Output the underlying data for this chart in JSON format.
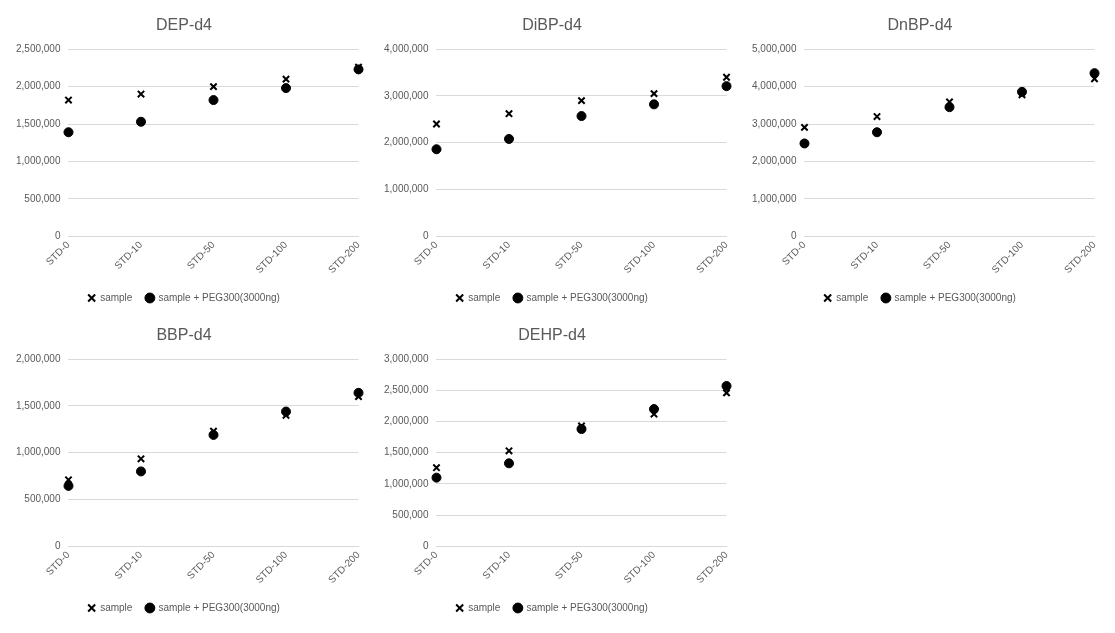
{
  "chart_data": [
    {
      "type": "scatter",
      "title": "DEP-d4",
      "categories": [
        "STD-0",
        "STD-10",
        "STD-50",
        "STD-100",
        "STD-200"
      ],
      "ylim": [
        0,
        2500000
      ],
      "yticks": [
        {
          "value": 0,
          "label": "0"
        },
        {
          "value": 500000,
          "label": "500,000"
        },
        {
          "value": 1000000,
          "label": "1,000,000"
        },
        {
          "value": 1500000,
          "label": "1,500,000"
        },
        {
          "value": 2000000,
          "label": "2,000,000"
        },
        {
          "value": 2500000,
          "label": "2,500,000"
        }
      ],
      "grid": "y",
      "legend": "bottom",
      "series": [
        {
          "name": "sample",
          "color": "#000000",
          "marker": "cross",
          "values": [
            1820000,
            1900000,
            2000000,
            2100000,
            2260000
          ]
        },
        {
          "name": "sample + PEG300(3000ng)",
          "color": "#000000",
          "marker": "circle",
          "values": [
            1390000,
            1530000,
            1820000,
            1980000,
            2230000
          ]
        }
      ]
    },
    {
      "type": "scatter",
      "title": "DiBP-d4",
      "categories": [
        "STD-0",
        "STD-10",
        "STD-50",
        "STD-100",
        "STD-200"
      ],
      "ylim": [
        0,
        4000000
      ],
      "yticks": [
        {
          "value": 0,
          "label": "0"
        },
        {
          "value": 1000000,
          "label": "1,000,000"
        },
        {
          "value": 2000000,
          "label": "2,000,000"
        },
        {
          "value": 3000000,
          "label": "3,000,000"
        },
        {
          "value": 4000000,
          "label": "4,000,000"
        }
      ],
      "grid": "y",
      "legend": "bottom",
      "series": [
        {
          "name": "sample",
          "color": "#000000",
          "marker": "cross",
          "values": [
            2400000,
            2620000,
            2900000,
            3050000,
            3400000
          ]
        },
        {
          "name": "sample + PEG300(3000ng)",
          "color": "#000000",
          "marker": "circle",
          "values": [
            1860000,
            2080000,
            2570000,
            2820000,
            3210000
          ]
        }
      ]
    },
    {
      "type": "scatter",
      "title": "DnBP-d4",
      "categories": [
        "STD-0",
        "STD-10",
        "STD-50",
        "STD-100",
        "STD-200"
      ],
      "ylim": [
        0,
        5000000
      ],
      "yticks": [
        {
          "value": 0,
          "label": "0"
        },
        {
          "value": 1000000,
          "label": "1,000,000"
        },
        {
          "value": 2000000,
          "label": "2,000,000"
        },
        {
          "value": 3000000,
          "label": "3,000,000"
        },
        {
          "value": 4000000,
          "label": "4,000,000"
        },
        {
          "value": 5000000,
          "label": "5,000,000"
        }
      ],
      "grid": "y",
      "legend": "bottom",
      "series": [
        {
          "name": "sample",
          "color": "#000000",
          "marker": "cross",
          "values": [
            2910000,
            3200000,
            3590000,
            3780000,
            4210000
          ]
        },
        {
          "name": "sample + PEG300(3000ng)",
          "color": "#000000",
          "marker": "circle",
          "values": [
            2480000,
            2780000,
            3450000,
            3860000,
            4360000
          ]
        }
      ]
    },
    {
      "type": "scatter",
      "title": "BBP-d4",
      "categories": [
        "STD-0",
        "STD-10",
        "STD-50",
        "STD-100",
        "STD-200"
      ],
      "ylim": [
        0,
        2000000
      ],
      "yticks": [
        {
          "value": 0,
          "label": "0"
        },
        {
          "value": 500000,
          "label": "500,000"
        },
        {
          "value": 1000000,
          "label": "1,000,000"
        },
        {
          "value": 1500000,
          "label": "1,500,000"
        },
        {
          "value": 2000000,
          "label": "2,000,000"
        }
      ],
      "grid": "y",
      "legend": "bottom",
      "series": [
        {
          "name": "sample",
          "color": "#000000",
          "marker": "cross",
          "values": [
            710000,
            935000,
            1230000,
            1400000,
            1600000
          ]
        },
        {
          "name": "sample + PEG300(3000ng)",
          "color": "#000000",
          "marker": "circle",
          "values": [
            645000,
            800000,
            1190000,
            1440000,
            1640000
          ]
        }
      ]
    },
    {
      "type": "scatter",
      "title": "DEHP-d4",
      "categories": [
        "STD-0",
        "STD-10",
        "STD-50",
        "STD-100",
        "STD-200"
      ],
      "ylim": [
        0,
        3000000
      ],
      "yticks": [
        {
          "value": 0,
          "label": "0"
        },
        {
          "value": 500000,
          "label": "500,000"
        },
        {
          "value": 1000000,
          "label": "1,000,000"
        },
        {
          "value": 1500000,
          "label": "1,500,000"
        },
        {
          "value": 2000000,
          "label": "2,000,000"
        },
        {
          "value": 2500000,
          "label": "2,500,000"
        },
        {
          "value": 3000000,
          "label": "3,000,000"
        }
      ],
      "grid": "y",
      "legend": "bottom",
      "series": [
        {
          "name": "sample",
          "color": "#000000",
          "marker": "cross",
          "values": [
            1260000,
            1530000,
            1930000,
            2120000,
            2460000
          ]
        },
        {
          "name": "sample + PEG300(3000ng)",
          "color": "#000000",
          "marker": "circle",
          "values": [
            1100000,
            1330000,
            1880000,
            2200000,
            2570000
          ]
        }
      ]
    }
  ]
}
